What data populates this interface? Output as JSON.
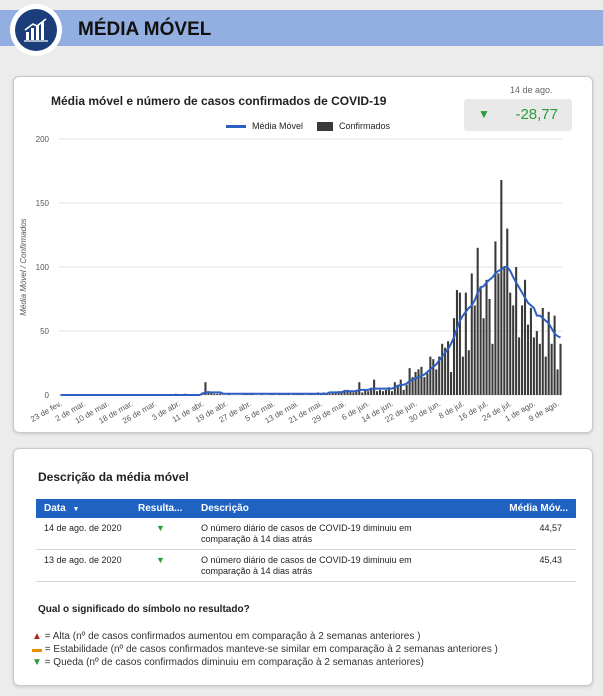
{
  "header": {
    "title": "MÉDIA MÓVEL",
    "icon": "bar-chart-growth-icon"
  },
  "chart_card": {
    "title": "Média móvel e número de casos confirmados de COVID-19",
    "kpi": {
      "date": "14 de ago.",
      "arrow": "▼",
      "value": "-28,77",
      "color": "#2a9c3a"
    },
    "legend": {
      "line": "Média Móvel",
      "bars": "Confirmados"
    }
  },
  "chart_data": {
    "type": "bar+line",
    "title": "Média móvel e número de casos confirmados de COVID-19",
    "ylabel": "Média Móvel / Confirmados",
    "ylim": [
      0,
      200
    ],
    "yticks": [
      0,
      50,
      100,
      150,
      200
    ],
    "series_colors": {
      "bars": "#3a3a3a",
      "line": "#2e5fc2"
    },
    "x_tick_labels": [
      "23 de fev.",
      "2 de mar.",
      "10 de mar.",
      "18 de mar.",
      "26 de mar.",
      "3 de abr.",
      "11 de abr.",
      "19 de abr.",
      "27 de abr.",
      "5 de mai.",
      "13 de mai.",
      "21 de mai.",
      "29 de mai.",
      "6 de jun.",
      "14 de jun.",
      "22 de jun.",
      "30 de jun.",
      "8 de jul.",
      "16 de jul.",
      "24 de jul.",
      "1 de ago.",
      "9 de ago."
    ],
    "series": [
      {
        "name": "Confirmados",
        "kind": "bar",
        "values": [
          0,
          0,
          0,
          0,
          0,
          0,
          0,
          0,
          0,
          0,
          0,
          0,
          0,
          0,
          0,
          0,
          0,
          0,
          0,
          0,
          0,
          0,
          0,
          0,
          0,
          0,
          0,
          0,
          0,
          0,
          0,
          0,
          0,
          0,
          0,
          0,
          0,
          0,
          0,
          1,
          0,
          0,
          1,
          0,
          0,
          0,
          0,
          0,
          2,
          10,
          3,
          2,
          1,
          1,
          1,
          0,
          0,
          1,
          0,
          0,
          0,
          0,
          1,
          1,
          1,
          1,
          0,
          0,
          1,
          0,
          0,
          1,
          1,
          0,
          1,
          1,
          1,
          1,
          0,
          1,
          1,
          1,
          1,
          0,
          1,
          1,
          1,
          2,
          1,
          2,
          1,
          1,
          2,
          2,
          3,
          3,
          4,
          4,
          3,
          2,
          4,
          10,
          2,
          4,
          3,
          5,
          12,
          3,
          4,
          3,
          4,
          6,
          3,
          10,
          8,
          12,
          4,
          8,
          21,
          14,
          18,
          20,
          22,
          14,
          17,
          30,
          28,
          20,
          30,
          40,
          37,
          42,
          18,
          60,
          82,
          80,
          30,
          80,
          35,
          95,
          70,
          115,
          85,
          60,
          90,
          75,
          40,
          120,
          95,
          168,
          100,
          130,
          80,
          70,
          100,
          45,
          70,
          90,
          55,
          68,
          45,
          50,
          40,
          68,
          30,
          65,
          40,
          62,
          20,
          40
        ]
      },
      {
        "name": "Média Móvel",
        "kind": "line",
        "values": [
          0,
          0,
          0,
          0,
          0,
          0,
          0,
          0,
          0,
          0,
          0,
          0,
          0,
          0,
          0,
          0,
          0,
          0,
          0,
          0,
          0,
          0,
          0,
          0,
          0,
          0,
          0,
          0,
          0,
          0,
          0,
          0,
          0,
          0,
          0,
          0,
          0,
          0,
          0,
          0,
          0,
          0,
          0,
          0,
          0,
          0,
          0,
          0,
          1,
          2,
          2,
          2,
          2,
          2,
          2,
          1,
          1,
          1,
          1,
          1,
          1,
          1,
          1,
          1,
          1,
          1,
          1,
          1,
          1,
          1,
          1,
          1,
          1,
          1,
          1,
          1,
          1,
          1,
          1,
          1,
          1,
          1,
          1,
          1,
          1,
          1,
          1,
          1,
          1,
          1,
          1,
          2,
          2,
          2,
          2,
          2,
          3,
          3,
          3,
          3,
          3,
          4,
          4,
          4,
          4,
          5,
          5,
          5,
          5,
          5,
          5,
          5,
          5,
          6,
          7,
          8,
          8,
          9,
          11,
          12,
          13,
          14,
          15,
          16,
          18,
          20,
          22,
          24,
          27,
          30,
          33,
          36,
          40,
          45,
          52,
          58,
          62,
          65,
          68,
          70,
          74,
          80,
          84,
          85,
          88,
          90,
          92,
          95,
          97,
          98,
          100,
          100,
          97,
          92,
          88,
          84,
          80,
          76,
          72,
          70,
          68,
          62,
          62,
          60,
          58,
          56,
          52,
          48,
          46,
          45
        ]
      }
    ]
  },
  "description_card": {
    "title": "Descrição da média móvel",
    "columns": {
      "date": "Data",
      "result": "Resulta...",
      "description": "Descrição",
      "media": "Média Móv..."
    },
    "sort_icon": "▼",
    "rows": [
      {
        "date": "14 de ago. de 2020",
        "result": "▼",
        "description": "O número diário de casos de COVID-19 diminuiu em comparação à 14 dias atrás",
        "media": "44,57"
      },
      {
        "date": "13 de ago. de 2020",
        "result": "▼",
        "description": "O número diário de casos de COVID-19 diminuiu em comparação à 14 dias atrás",
        "media": "45,43"
      }
    ],
    "question": "Qual o significado do símbolo no resultado?",
    "legend_items": [
      {
        "symbol": "▲",
        "text": " = Alta (nº de casos confirmados aumentou em comparação à 2 semanas anteriores )",
        "color": "#b3261e"
      },
      {
        "symbol": "▬",
        "text": " = Estabilidade (nº de casos confirmados manteve-se similar em comparação à 2 semanas anteriores )",
        "color": "#f08c00"
      },
      {
        "symbol": "▼",
        "text": " = Queda (nº de casos confirmados diminuiu em comparação à 2 semanas anteriores)",
        "color": "#2a9c3a"
      }
    ]
  }
}
